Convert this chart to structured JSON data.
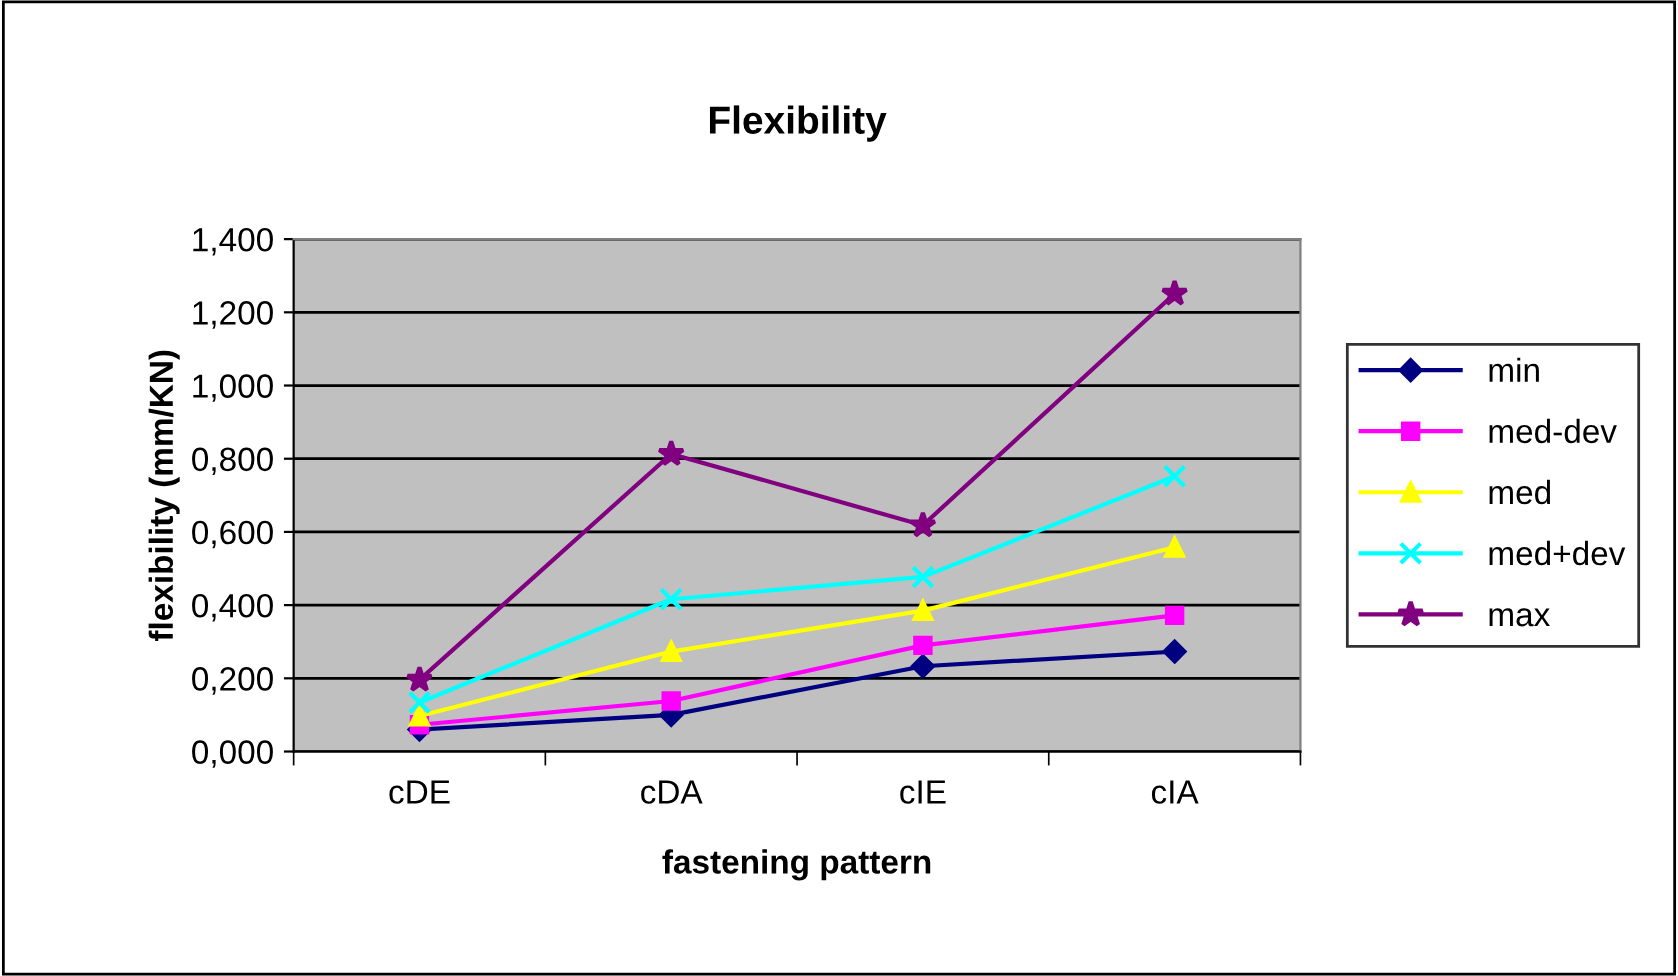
{
  "chart_data": {
    "type": "line",
    "title": "Flexibility",
    "xlabel": "fastening pattern",
    "ylabel": "flexibility (mm/KN)",
    "categories": [
      "cDE",
      "cDA",
      "cIE",
      "cIA"
    ],
    "series": [
      {
        "name": "min",
        "color": "#000080",
        "marker": "diamond",
        "values": [
          0.06,
          0.1,
          0.233,
          0.273
        ]
      },
      {
        "name": "med-dev",
        "color": "#ff00ff",
        "marker": "square",
        "values": [
          0.073,
          0.138,
          0.29,
          0.372
        ]
      },
      {
        "name": "med",
        "color": "#ffff00",
        "marker": "triangle",
        "values": [
          0.097,
          0.273,
          0.385,
          0.558
        ]
      },
      {
        "name": "med+dev",
        "color": "#00ffff",
        "marker": "cross",
        "values": [
          0.134,
          0.416,
          0.477,
          0.752
        ]
      },
      {
        "name": "max",
        "color": "#800080",
        "marker": "star",
        "values": [
          0.196,
          0.813,
          0.618,
          1.251
        ]
      }
    ],
    "ylim": [
      0,
      1.4
    ],
    "yticks": [
      {
        "value": 0,
        "label": "0,000"
      },
      {
        "value": 0.2,
        "label": "0,200"
      },
      {
        "value": 0.4,
        "label": "0,400"
      },
      {
        "value": 0.6,
        "label": "0,600"
      },
      {
        "value": 0.8,
        "label": "0,800"
      },
      {
        "value": 1.0,
        "label": "1,000"
      },
      {
        "value": 1.2,
        "label": "1,200"
      },
      {
        "value": 1.4,
        "label": "1,400"
      }
    ],
    "grid": "y",
    "legend": "right"
  }
}
